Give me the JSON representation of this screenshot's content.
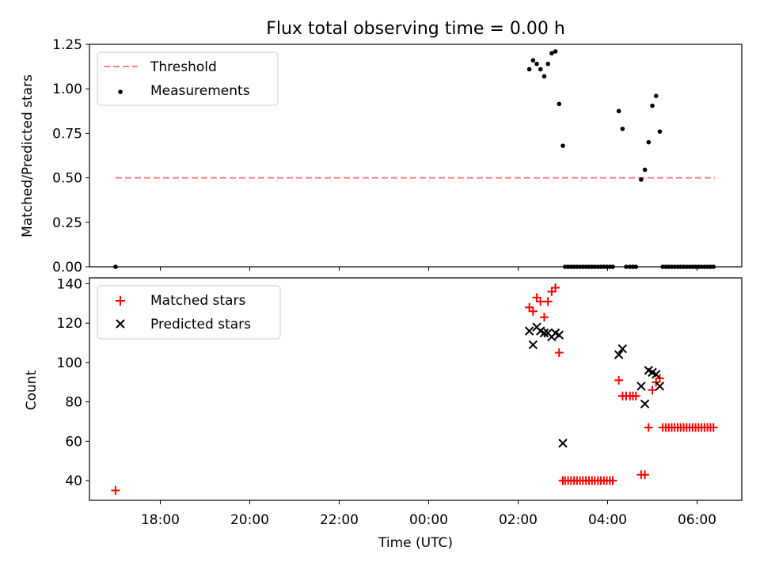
{
  "figure": {
    "title": "Flux total observing time = 0.00 h",
    "xlabel": "Time (UTC)",
    "x_ticks": [
      "18:00",
      "20:00",
      "22:00",
      "00:00",
      "02:00",
      "04:00",
      "06:00"
    ],
    "colors": {
      "threshold": "#ff7f7f",
      "measurements": "#000000",
      "matched": "#ff0000",
      "predicted": "#000000"
    }
  },
  "chart_data": [
    {
      "type": "scatter",
      "ylabel": "Matched/Predicted stars",
      "x_unit": "UTC time (continuing past midnight)",
      "xlim": [
        "16:25",
        "07:00"
      ],
      "ylim": [
        0,
        1.25
      ],
      "y_ticks": [
        "0.00",
        "0.25",
        "0.50",
        "0.75",
        "1.00",
        "1.25"
      ],
      "legend": {
        "placement": "upper-left",
        "entries": [
          "Threshold",
          "Measurements"
        ]
      },
      "threshold": {
        "name": "Threshold",
        "y": 0.5,
        "x_start": "17:00",
        "x_end": "06:24",
        "style": "dashed"
      },
      "series": [
        {
          "name": "Measurements",
          "marker": "dot",
          "x": [
            "17:00",
            "02:15",
            "02:20",
            "02:25",
            "02:30",
            "02:35",
            "02:40",
            "02:45",
            "02:50",
            "02:55",
            "03:00",
            "03:03",
            "03:07",
            "03:11",
            "03:15",
            "03:19",
            "03:23",
            "03:27",
            "03:31",
            "03:35",
            "03:39",
            "03:43",
            "03:47",
            "03:51",
            "03:55",
            "03:59",
            "04:03",
            "04:07",
            "04:15",
            "04:20",
            "04:25",
            "04:30",
            "04:34",
            "04:38",
            "04:45",
            "04:50",
            "04:55",
            "05:00",
            "05:05",
            "05:10",
            "05:14",
            "05:18",
            "05:22",
            "05:26",
            "05:30",
            "05:34",
            "05:38",
            "05:42",
            "05:46",
            "05:50",
            "05:54",
            "05:58",
            "06:02",
            "06:06",
            "06:10",
            "06:14",
            "06:18",
            "06:22"
          ],
          "y": [
            0.0,
            1.11,
            1.16,
            1.14,
            1.11,
            1.07,
            1.14,
            1.2,
            1.21,
            0.915,
            0.68,
            0,
            0,
            0,
            0,
            0,
            0,
            0,
            0,
            0,
            0,
            0,
            0,
            0,
            0,
            0,
            0,
            0,
            0.875,
            0.775,
            0,
            0,
            0,
            0,
            0.49,
            0.545,
            0.7,
            0.905,
            0.96,
            0.76,
            0,
            0,
            0,
            0,
            0,
            0,
            0,
            0,
            0,
            0,
            0,
            0,
            0,
            0,
            0,
            0,
            0,
            0
          ]
        }
      ]
    },
    {
      "type": "scatter",
      "ylabel": "Count",
      "x_unit": "UTC time (continuing past midnight)",
      "xlim": [
        "16:25",
        "07:00"
      ],
      "ylim": [
        30,
        143
      ],
      "y_ticks": [
        "40",
        "60",
        "80",
        "100",
        "120",
        "140"
      ],
      "legend": {
        "placement": "upper-left",
        "entries": [
          "Matched stars",
          "Predicted stars"
        ]
      },
      "series": [
        {
          "name": "Matched stars",
          "marker": "plus",
          "x": [
            "17:00",
            "02:15",
            "02:20",
            "02:25",
            "02:30",
            "02:35",
            "02:40",
            "02:45",
            "02:50",
            "02:55",
            "03:00",
            "03:03",
            "03:07",
            "03:11",
            "03:15",
            "03:19",
            "03:23",
            "03:27",
            "03:31",
            "03:35",
            "03:39",
            "03:43",
            "03:47",
            "03:51",
            "03:55",
            "03:59",
            "04:03",
            "04:07",
            "04:15",
            "04:20",
            "04:25",
            "04:30",
            "04:34",
            "04:38",
            "04:45",
            "04:50",
            "04:55",
            "05:00",
            "05:05",
            "05:10",
            "05:14",
            "05:18",
            "05:22",
            "05:26",
            "05:30",
            "05:34",
            "05:38",
            "05:42",
            "05:46",
            "05:50",
            "05:54",
            "05:58",
            "06:02",
            "06:06",
            "06:10",
            "06:14",
            "06:18",
            "06:22"
          ],
          "y": [
            35,
            128,
            126,
            133,
            131,
            123,
            131,
            136,
            138,
            105,
            40,
            40,
            40,
            40,
            40,
            40,
            40,
            40,
            40,
            40,
            40,
            40,
            40,
            40,
            40,
            40,
            40,
            40,
            91,
            83,
            83,
            83,
            83,
            83,
            43,
            43,
            67,
            86,
            90,
            92,
            67,
            67,
            67,
            67,
            67,
            67,
            67,
            67,
            67,
            67,
            67,
            67,
            67,
            67,
            67,
            67,
            67,
            67
          ]
        },
        {
          "name": "Predicted stars",
          "marker": "x",
          "x": [
            "02:15",
            "02:20",
            "02:25",
            "02:30",
            "02:35",
            "02:40",
            "02:45",
            "02:50",
            "02:55",
            "03:00",
            "04:15",
            "04:20",
            "04:45",
            "04:50",
            "04:55",
            "05:00",
            "05:05",
            "05:10"
          ],
          "y": [
            116,
            109,
            118,
            116,
            115,
            115,
            113,
            115,
            114,
            59,
            104,
            107,
            88,
            79,
            96,
            95,
            94,
            88
          ]
        }
      ]
    }
  ]
}
